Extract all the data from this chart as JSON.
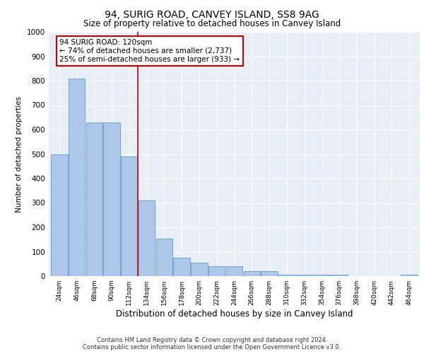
{
  "title": "94, SURIG ROAD, CANVEY ISLAND, SS8 9AG",
  "subtitle": "Size of property relative to detached houses in Canvey Island",
  "xlabel": "Distribution of detached houses by size in Canvey Island",
  "ylabel": "Number of detached properties",
  "footer_line1": "Contains HM Land Registry data © Crown copyright and database right 2024.",
  "footer_line2": "Contains public sector information licensed under the Open Government Licence v3.0.",
  "bar_color": "#aec6e8",
  "bar_edge_color": "#5a9fd4",
  "vline_color": "#cc0000",
  "annotation_box_color": "#cc0000",
  "categories": [
    "24sqm",
    "46sqm",
    "68sqm",
    "90sqm",
    "112sqm",
    "134sqm",
    "156sqm",
    "178sqm",
    "200sqm",
    "222sqm",
    "244sqm",
    "266sqm",
    "288sqm",
    "310sqm",
    "332sqm",
    "354sqm",
    "376sqm",
    "398sqm",
    "420sqm",
    "442sqm",
    "464sqm"
  ],
  "values": [
    500,
    810,
    630,
    630,
    490,
    310,
    155,
    75,
    55,
    40,
    40,
    20,
    20,
    5,
    5,
    5,
    5,
    0,
    0,
    0,
    5
  ],
  "vline_x": 4.5,
  "annotation_text": "94 SURIG ROAD: 120sqm\n← 74% of detached houses are smaller (2,737)\n25% of semi-detached houses are larger (933) →",
  "ylim": [
    0,
    1000
  ],
  "yticks": [
    0,
    100,
    200,
    300,
    400,
    500,
    600,
    700,
    800,
    900,
    1000
  ],
  "plot_bg_color": "#e8eef8",
  "grid_color": "#ffffff"
}
